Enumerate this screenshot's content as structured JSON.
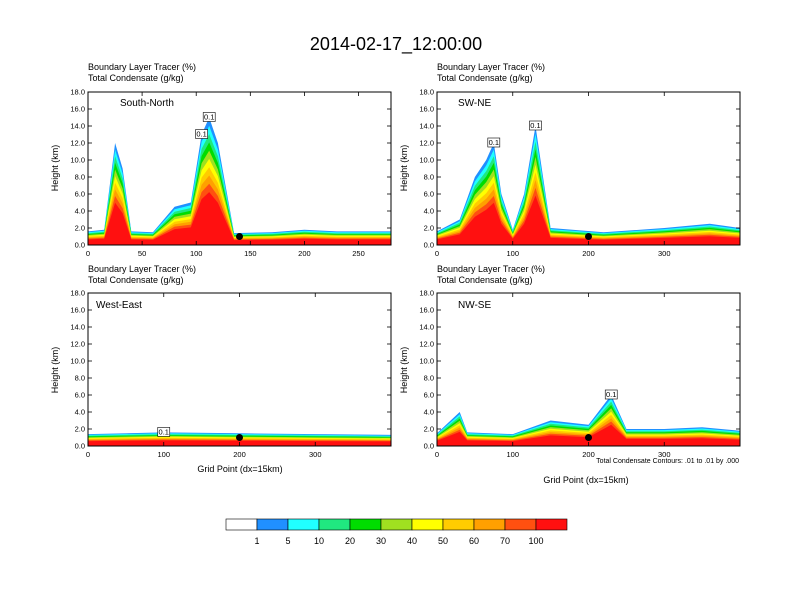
{
  "figure": {
    "title": "2014-02-17_12:00:00",
    "xlabel": "Grid Point (dx=15km)",
    "ylabel": "Height (km)",
    "contour_note": "Total Condensate Contours: .01 to .01 by .000"
  },
  "chart_data": [
    {
      "type": "heatmap",
      "panel": "South-North",
      "title": "South-North",
      "header_line1": "Boundary Layer Tracer    (%)",
      "header_line2": "Total Condensate   (g/kg)",
      "xlabel": "",
      "ylabel": "Height (km)",
      "xlim": [
        0,
        280
      ],
      "ylim": [
        0,
        18
      ],
      "xticks": [
        0,
        50,
        100,
        150,
        200,
        250
      ],
      "yticks": [
        0,
        2,
        4,
        6,
        8,
        10,
        12,
        14,
        16,
        18
      ],
      "marker_x": 140,
      "boxed_labels": [
        "0.1",
        "0.1"
      ],
      "colors": [
        "#ff1010",
        "#ff5010",
        "#ffa000",
        "#ffcc00",
        "#ffff00",
        "#a0e020",
        "#00dd00",
        "#20e880",
        "#20ffff",
        "#2090ff"
      ],
      "columns": [
        {
          "x": 0,
          "top": 1.6
        },
        {
          "x": 15,
          "top": 1.8
        },
        {
          "x": 25,
          "top": 12
        },
        {
          "x": 32,
          "top": 9
        },
        {
          "x": 40,
          "top": 1.6
        },
        {
          "x": 60,
          "top": 1.5
        },
        {
          "x": 80,
          "top": 4.5
        },
        {
          "x": 95,
          "top": 5
        },
        {
          "x": 105,
          "top": 13
        },
        {
          "x": 112,
          "top": 15
        },
        {
          "x": 120,
          "top": 12
        },
        {
          "x": 135,
          "top": 1.4
        },
        {
          "x": 170,
          "top": 1.5
        },
        {
          "x": 200,
          "top": 1.8
        },
        {
          "x": 230,
          "top": 1.6
        },
        {
          "x": 280,
          "top": 1.6
        }
      ]
    },
    {
      "type": "heatmap",
      "panel": "SW-NE",
      "title": "SW-NE",
      "header_line1": "Boundary Layer Tracer    (%)",
      "header_line2": "Total Condensate   (g/kg)",
      "xlabel": "",
      "ylabel": "Height (km)",
      "xlim": [
        0,
        400
      ],
      "ylim": [
        0,
        18
      ],
      "xticks": [
        0,
        100,
        200,
        300
      ],
      "yticks": [
        0,
        2,
        4,
        6,
        8,
        10,
        12,
        14,
        16,
        18
      ],
      "marker_x": 200,
      "boxed_labels": [
        "0.1",
        "0.1"
      ],
      "colors": [
        "#ff1010",
        "#ff5010",
        "#ffa000",
        "#ffcc00",
        "#ffff00",
        "#a0e020",
        "#00dd00",
        "#20e880",
        "#20ffff",
        "#2090ff"
      ],
      "columns": [
        {
          "x": 0,
          "top": 1.6
        },
        {
          "x": 30,
          "top": 3
        },
        {
          "x": 50,
          "top": 8
        },
        {
          "x": 65,
          "top": 10
        },
        {
          "x": 75,
          "top": 12
        },
        {
          "x": 85,
          "top": 6
        },
        {
          "x": 100,
          "top": 1.8
        },
        {
          "x": 115,
          "top": 6
        },
        {
          "x": 130,
          "top": 14
        },
        {
          "x": 150,
          "top": 2
        },
        {
          "x": 220,
          "top": 1.5
        },
        {
          "x": 300,
          "top": 2
        },
        {
          "x": 360,
          "top": 2.5
        },
        {
          "x": 400,
          "top": 2
        }
      ]
    },
    {
      "type": "heatmap",
      "panel": "West-East",
      "title": "West-East",
      "header_line1": "Boundary Layer Tracer    (%)",
      "header_line2": "Total Condensate   (g/kg)",
      "xlabel": "Grid Point (dx=15km)",
      "ylabel": "Height (km)",
      "xlim": [
        0,
        400
      ],
      "ylim": [
        0,
        18
      ],
      "xticks": [
        0,
        100,
        200,
        300
      ],
      "yticks": [
        0,
        2,
        4,
        6,
        8,
        10,
        12,
        14,
        16,
        18
      ],
      "marker_x": 200,
      "boxed_labels": [
        "0.1"
      ],
      "colors": [
        "#ff1010",
        "#ff5010",
        "#ffa000",
        "#ffcc00",
        "#ffff00",
        "#a0e020",
        "#00dd00",
        "#20e880",
        "#20ffff",
        "#2090ff"
      ],
      "columns": [
        {
          "x": 0,
          "top": 1.4
        },
        {
          "x": 100,
          "top": 1.6
        },
        {
          "x": 200,
          "top": 1.5
        },
        {
          "x": 300,
          "top": 1.4
        },
        {
          "x": 400,
          "top": 1.3
        }
      ]
    },
    {
      "type": "heatmap",
      "panel": "NW-SE",
      "title": "NW-SE",
      "header_line1": "Boundary Layer Tracer    (%)",
      "header_line2": "Total Condensate   (g/kg)",
      "xlabel": "Grid Point (dx=15km)",
      "ylabel": "Height (km)",
      "xlim": [
        0,
        400
      ],
      "ylim": [
        0,
        18
      ],
      "xticks": [
        0,
        100,
        200,
        300
      ],
      "yticks": [
        0,
        2,
        4,
        6,
        8,
        10,
        12,
        14,
        16,
        18
      ],
      "marker_x": 200,
      "boxed_labels": [
        "0.1"
      ],
      "colors": [
        "#ff1010",
        "#ff5010",
        "#ffa000",
        "#ffcc00",
        "#ffff00",
        "#a0e020",
        "#00dd00",
        "#20e880",
        "#20ffff",
        "#2090ff"
      ],
      "columns": [
        {
          "x": 0,
          "top": 1.5
        },
        {
          "x": 30,
          "top": 4
        },
        {
          "x": 40,
          "top": 1.6
        },
        {
          "x": 100,
          "top": 1.4
        },
        {
          "x": 150,
          "top": 3
        },
        {
          "x": 200,
          "top": 2.5
        },
        {
          "x": 230,
          "top": 6
        },
        {
          "x": 250,
          "top": 2
        },
        {
          "x": 300,
          "top": 2
        },
        {
          "x": 350,
          "top": 2.2
        },
        {
          "x": 400,
          "top": 1.8
        }
      ]
    }
  ],
  "colorbar": {
    "labels": [
      "1",
      "5",
      "10",
      "20",
      "30",
      "40",
      "50",
      "60",
      "70",
      "100"
    ],
    "colors": [
      "#ffffff",
      "#2090ff",
      "#20ffff",
      "#20e880",
      "#00dd00",
      "#a0e020",
      "#ffff00",
      "#ffcc00",
      "#ffa000",
      "#ff5010",
      "#ff1010"
    ]
  }
}
